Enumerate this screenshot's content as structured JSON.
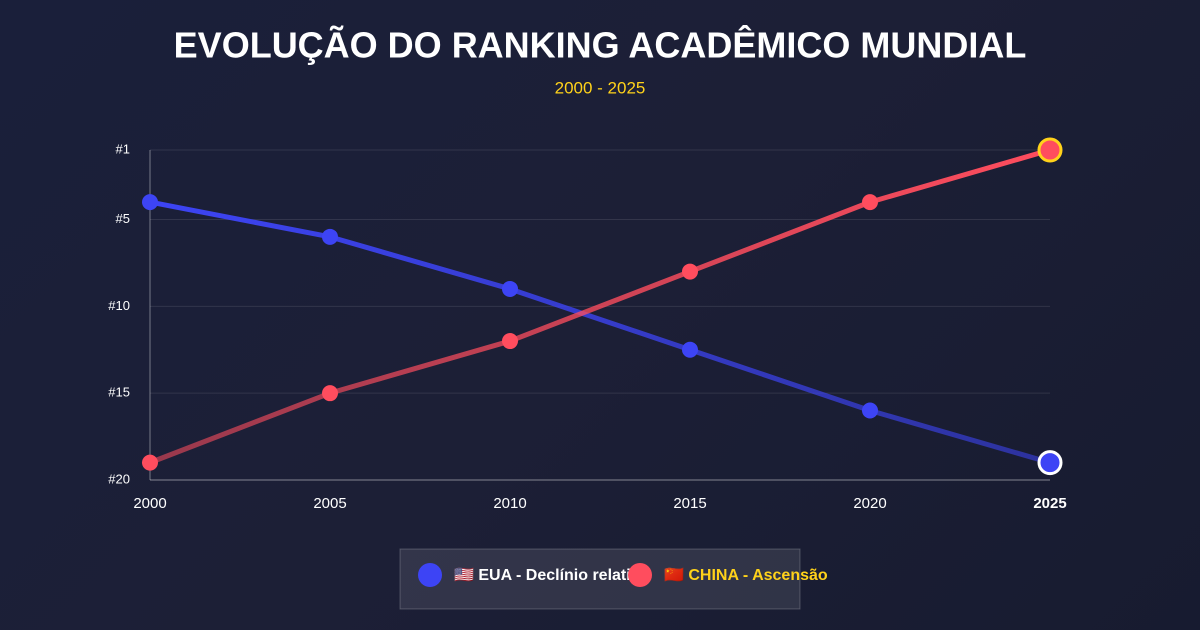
{
  "chart_data": {
    "type": "line",
    "title": "EVOLUÇÃO DO RANKING ACADÊMICO MUNDIAL",
    "subtitle": "2000 - 2025",
    "categories": [
      "2000",
      "2005",
      "2010",
      "2015",
      "2020",
      "2025"
    ],
    "series": [
      {
        "name": "🇺🇸 EUA - Declínio relativo",
        "color": "#3d44f5",
        "values": [
          4,
          6,
          9,
          12.5,
          16,
          19
        ]
      },
      {
        "name": "🇨🇳 CHINA - Ascensão",
        "color": "#ff4d5e",
        "values": [
          19,
          15,
          12,
          8,
          4,
          1
        ]
      }
    ],
    "ylim": [
      1,
      20
    ],
    "y_reversed": true,
    "yticks": [
      {
        "value": 1,
        "label": "#1"
      },
      {
        "value": 5,
        "label": "#5"
      },
      {
        "value": 10,
        "label": "#10"
      },
      {
        "value": 15,
        "label": "#15"
      },
      {
        "value": 20,
        "label": "#20"
      }
    ],
    "grid": true,
    "legend": "bottom"
  }
}
